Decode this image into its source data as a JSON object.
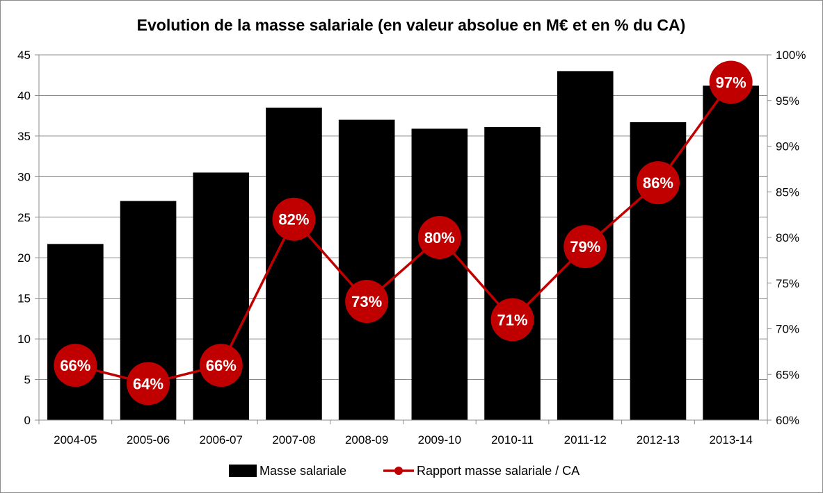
{
  "chart_data": {
    "type": "bar",
    "title": "Evolution de la masse salariale (en valeur absolue en M€ et en % du CA)",
    "categories": [
      "2004-05",
      "2005-06",
      "2006-07",
      "2007-08",
      "2008-09",
      "2009-10",
      "2010-11",
      "2011-12",
      "2012-13",
      "2013-14"
    ],
    "series": [
      {
        "name": "Masse salariale",
        "type": "bar",
        "axis": "left",
        "color": "#000000",
        "values": [
          21.7,
          27.0,
          30.5,
          38.5,
          37.0,
          35.9,
          36.1,
          43.0,
          36.7,
          41.2
        ]
      },
      {
        "name": "Rapport masse salariale / CA",
        "type": "line",
        "axis": "right",
        "color": "#c00000",
        "values": [
          66,
          64,
          66,
          82,
          73,
          80,
          71,
          79,
          86,
          97
        ],
        "labels": [
          "66%",
          "64%",
          "66%",
          "82%",
          "73%",
          "80%",
          "71%",
          "79%",
          "86%",
          "97%"
        ]
      }
    ],
    "y_left": {
      "min": 0,
      "max": 45,
      "step": 5,
      "ticks": [
        "0",
        "5",
        "10",
        "15",
        "20",
        "25",
        "30",
        "35",
        "40",
        "45"
      ]
    },
    "y_right": {
      "min": 60,
      "max": 100,
      "step": 5,
      "ticks": [
        "60%",
        "65%",
        "70%",
        "75%",
        "80%",
        "85%",
        "90%",
        "95%",
        "100%"
      ]
    },
    "grid": "horizontal",
    "legend_position": "bottom"
  }
}
